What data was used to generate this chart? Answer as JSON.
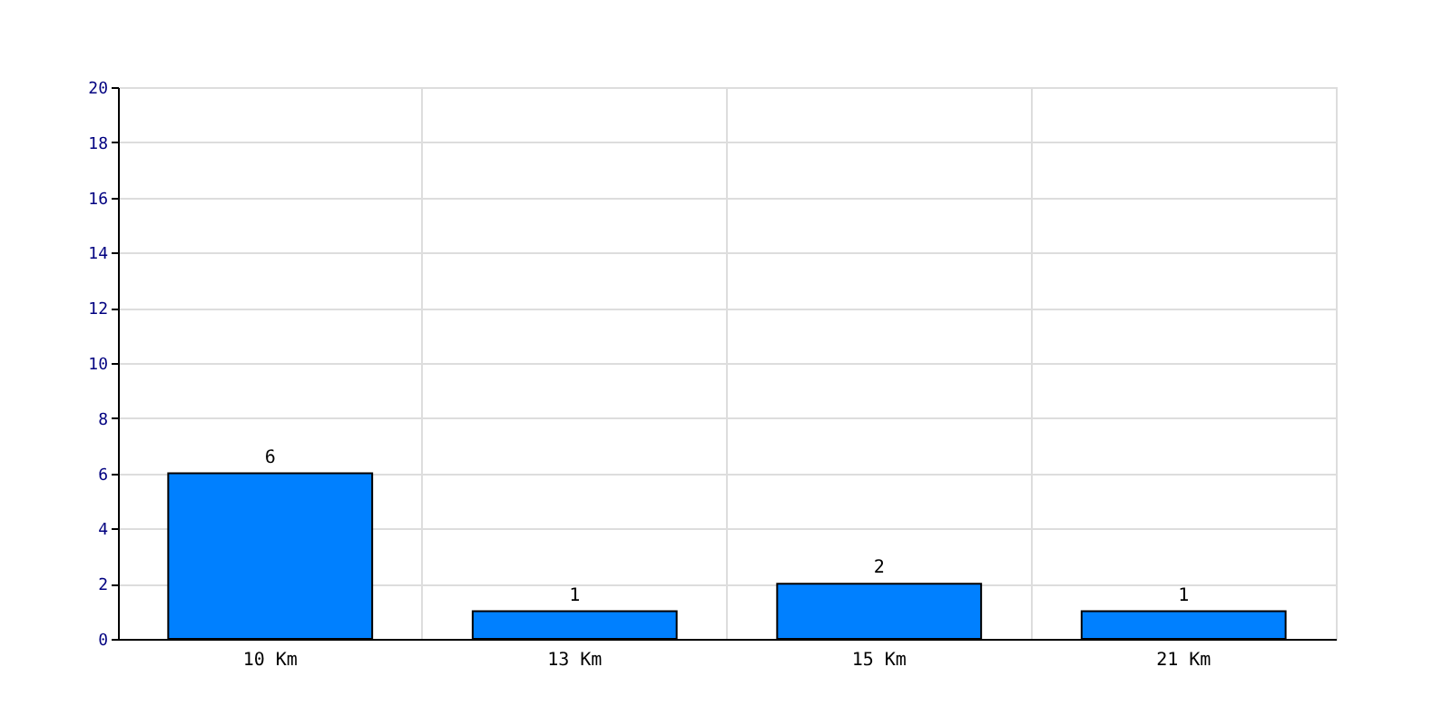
{
  "chart_data": {
    "type": "bar",
    "categories": [
      "10 Km",
      "13 Km",
      "15 Km",
      "21 Km"
    ],
    "values": [
      6,
      1,
      2,
      1
    ],
    "color": "#0080ff",
    "ylim": [
      0,
      20
    ],
    "yticks": [
      0,
      2,
      4,
      6,
      8,
      10,
      12,
      14,
      16,
      18,
      20
    ],
    "grid": true,
    "data_labels": true
  }
}
